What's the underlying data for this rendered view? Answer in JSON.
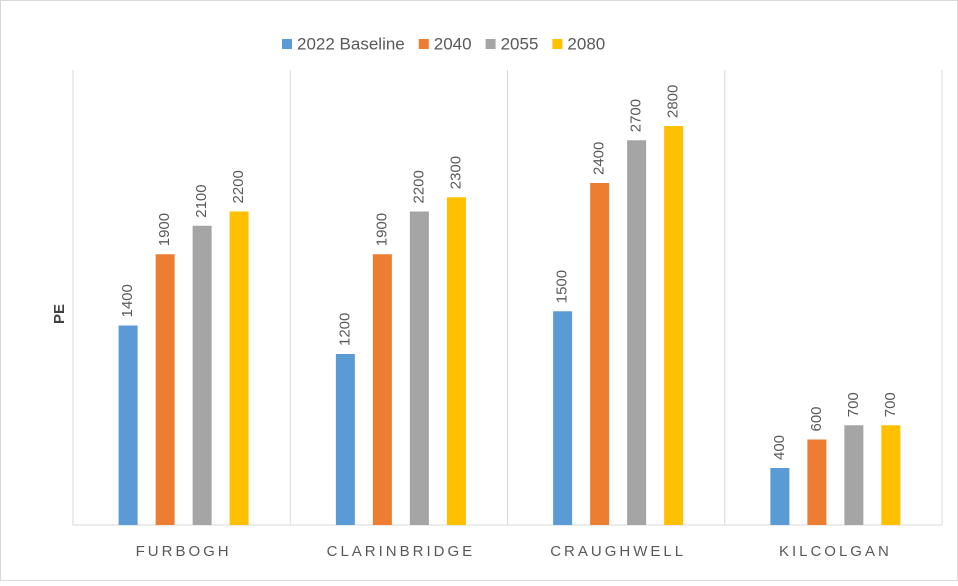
{
  "chart_data": {
    "type": "bar",
    "y_label": "PE",
    "categories": [
      "FURBOGH",
      "CLARINBRIDGE",
      "CRAUGHWELL",
      "KILCOLGAN"
    ],
    "series": [
      {
        "name": "2022 Baseline",
        "color": "#5b9bd5",
        "values": [
          1400,
          1200,
          1500,
          400
        ]
      },
      {
        "name": "2040",
        "color": "#ed7d31",
        "values": [
          1900,
          1900,
          2400,
          600
        ]
      },
      {
        "name": "2055",
        "color": "#a5a5a5",
        "values": [
          2100,
          2200,
          2700,
          700
        ]
      },
      {
        "name": "2080",
        "color": "#ffc000",
        "values": [
          2200,
          2300,
          2800,
          700
        ]
      }
    ],
    "ylim": [
      0,
      3200
    ]
  }
}
